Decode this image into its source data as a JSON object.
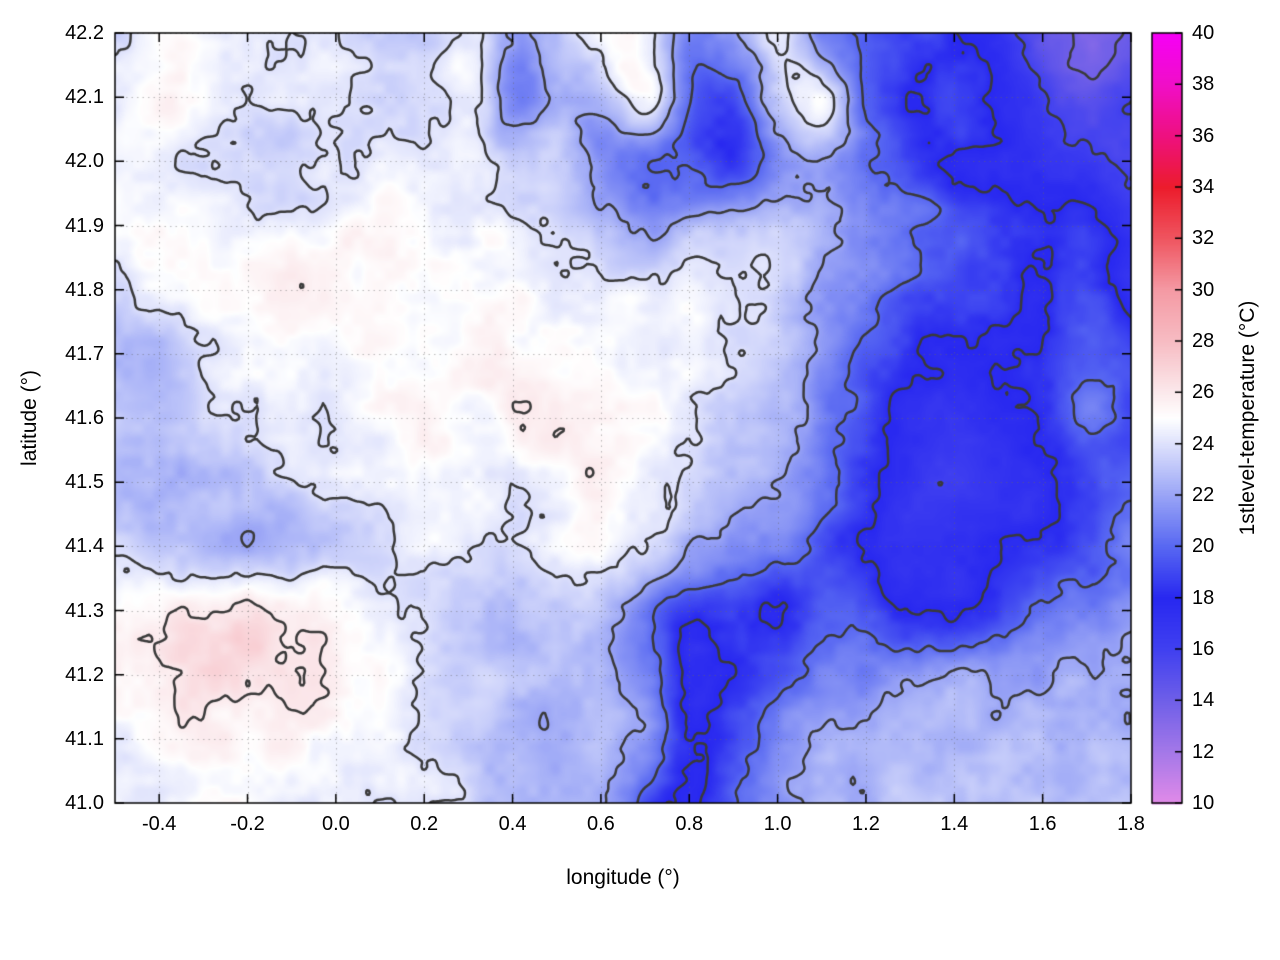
{
  "chart_data": {
    "type": "heatmap",
    "title": "",
    "xlabel": "longitude (°)",
    "ylabel": "latitude (°)",
    "colorbar_label": "1stlevel-temperature (°C)",
    "xlim": [
      -0.5,
      1.8
    ],
    "ylim": [
      41.0,
      42.2
    ],
    "clim": [
      10,
      40
    ],
    "xticks": [
      -0.4,
      -0.2,
      0.0,
      0.2,
      0.4,
      0.6,
      0.8,
      1.0,
      1.2,
      1.4,
      1.6,
      1.8
    ],
    "yticks": [
      41.0,
      41.1,
      41.2,
      41.3,
      41.4,
      41.5,
      41.6,
      41.7,
      41.8,
      41.9,
      42.0,
      42.1,
      42.2
    ],
    "cbticks": [
      10,
      12,
      14,
      16,
      18,
      20,
      22,
      24,
      26,
      28,
      30,
      32,
      34,
      36,
      38,
      40
    ],
    "grid": true,
    "legend_position": "colorbar-right",
    "contour_levels": [
      14,
      16,
      18,
      20,
      22,
      24,
      26
    ],
    "contour_color": "#3a3a3a",
    "colormap": [
      {
        "value": 10,
        "color": "#e18ae8"
      },
      {
        "value": 12,
        "color": "#a478e8"
      },
      {
        "value": 14,
        "color": "#6f5fe8"
      },
      {
        "value": 16,
        "color": "#4040f0"
      },
      {
        "value": 18,
        "color": "#2828f0"
      },
      {
        "value": 20,
        "color": "#5868f2"
      },
      {
        "value": 22,
        "color": "#9aa5f6"
      },
      {
        "value": 24,
        "color": "#dee2fc"
      },
      {
        "value": 25,
        "color": "#ffffff"
      },
      {
        "value": 26,
        "color": "#fbe9ec"
      },
      {
        "value": 28,
        "color": "#f7bcc3"
      },
      {
        "value": 30,
        "color": "#f49aa4"
      },
      {
        "value": 32,
        "color": "#ef5560"
      },
      {
        "value": 34,
        "color": "#ec1c2c"
      },
      {
        "value": 36,
        "color": "#ee1080"
      },
      {
        "value": 38,
        "color": "#f00ec8"
      },
      {
        "value": 40,
        "color": "#f600f6"
      }
    ],
    "grid_lons": [
      -0.5,
      -0.4,
      -0.3,
      -0.2,
      -0.1,
      0.0,
      0.1,
      0.2,
      0.3,
      0.4,
      0.5,
      0.6,
      0.7,
      0.8,
      0.9,
      1.0,
      1.1,
      1.2,
      1.3,
      1.4,
      1.5,
      1.6,
      1.7,
      1.8
    ],
    "grid_lats": [
      42.2,
      42.1,
      42.0,
      41.9,
      41.8,
      41.7,
      41.6,
      41.5,
      41.4,
      41.3,
      41.2,
      41.1,
      41.0
    ],
    "temperature_grid": [
      [
        24.0,
        25.0,
        24.5,
        24.0,
        24.0,
        24.0,
        23.5,
        23.5,
        24.5,
        22.0,
        23.0,
        24.5,
        24.5,
        21.0,
        21.5,
        24.0,
        21.0,
        20.0,
        19.0,
        18.0,
        17.0,
        15.0,
        13.5,
        14.0
      ],
      [
        24.5,
        25.5,
        24.5,
        24.0,
        24.0,
        24.0,
        23.5,
        23.5,
        24.5,
        21.0,
        22.0,
        23.0,
        25.0,
        20.5,
        19.0,
        23.0,
        24.5,
        20.0,
        18.0,
        19.0,
        18.0,
        16.0,
        15.0,
        16.0
      ],
      [
        25.0,
        24.5,
        24.0,
        24.0,
        23.5,
        24.0,
        24.5,
        24.0,
        24.5,
        23.0,
        23.5,
        21.0,
        20.0,
        19.5,
        18.5,
        21.0,
        22.0,
        20.5,
        19.0,
        18.0,
        17.5,
        17.0,
        16.5,
        15.5
      ],
      [
        24.5,
        25.0,
        25.0,
        24.5,
        24.5,
        25.0,
        25.0,
        25.0,
        24.5,
        24.5,
        23.5,
        22.5,
        21.5,
        22.5,
        23.0,
        23.5,
        22.5,
        21.5,
        20.5,
        19.5,
        19.0,
        18.0,
        18.5,
        17.0
      ],
      [
        24.0,
        24.5,
        25.0,
        25.0,
        25.5,
        25.5,
        25.0,
        25.0,
        25.0,
        25.0,
        24.5,
        24.5,
        24.5,
        24.5,
        24.0,
        23.5,
        22.0,
        21.0,
        19.5,
        19.0,
        18.5,
        18.0,
        19.0,
        17.5
      ],
      [
        23.0,
        22.5,
        24.0,
        24.5,
        25.0,
        25.0,
        25.5,
        25.0,
        25.5,
        25.5,
        25.0,
        25.0,
        24.5,
        24.5,
        24.0,
        23.0,
        21.5,
        20.0,
        18.5,
        17.5,
        18.0,
        18.5,
        19.5,
        19.0
      ],
      [
        23.5,
        23.0,
        23.5,
        24.0,
        24.5,
        24.5,
        25.0,
        25.5,
        25.0,
        25.5,
        26.0,
        25.5,
        25.0,
        24.0,
        23.5,
        22.5,
        21.0,
        19.0,
        17.5,
        17.0,
        17.5,
        18.0,
        20.5,
        19.0
      ],
      [
        22.5,
        22.5,
        23.0,
        23.0,
        23.5,
        24.0,
        24.5,
        25.0,
        25.0,
        24.5,
        25.0,
        25.5,
        24.5,
        23.5,
        22.5,
        22.0,
        20.5,
        18.5,
        17.0,
        16.5,
        17.0,
        17.5,
        18.5,
        19.5
      ],
      [
        23.5,
        23.0,
        22.5,
        22.5,
        22.5,
        23.0,
        23.5,
        24.5,
        24.0,
        23.5,
        24.5,
        25.0,
        24.0,
        22.5,
        21.5,
        21.0,
        19.5,
        18.0,
        17.0,
        17.0,
        17.5,
        18.0,
        19.0,
        20.5
      ],
      [
        25.0,
        25.5,
        26.0,
        26.5,
        26.0,
        25.5,
        24.5,
        24.0,
        23.5,
        22.5,
        23.5,
        23.0,
        21.0,
        18.5,
        19.0,
        18.0,
        19.5,
        19.0,
        18.0,
        17.5,
        19.0,
        20.0,
        21.0,
        21.5
      ],
      [
        25.5,
        26.0,
        26.5,
        26.5,
        26.0,
        25.5,
        25.0,
        24.0,
        23.5,
        23.0,
        22.5,
        22.5,
        21.0,
        17.5,
        18.0,
        19.5,
        20.5,
        21.0,
        21.5,
        22.0,
        22.0,
        22.0,
        22.5,
        22.5
      ],
      [
        24.5,
        25.0,
        25.5,
        25.5,
        25.5,
        25.0,
        24.5,
        24.0,
        23.5,
        22.5,
        22.0,
        23.0,
        21.5,
        18.0,
        19.0,
        21.0,
        22.0,
        22.5,
        22.5,
        22.5,
        22.5,
        22.5,
        22.5,
        22.5
      ],
      [
        24.5,
        24.5,
        25.0,
        25.0,
        24.5,
        24.5,
        24.0,
        24.0,
        23.5,
        23.0,
        22.5,
        22.0,
        19.5,
        17.5,
        20.0,
        21.5,
        22.5,
        22.5,
        23.0,
        23.0,
        23.0,
        23.0,
        23.0,
        23.0
      ]
    ]
  }
}
